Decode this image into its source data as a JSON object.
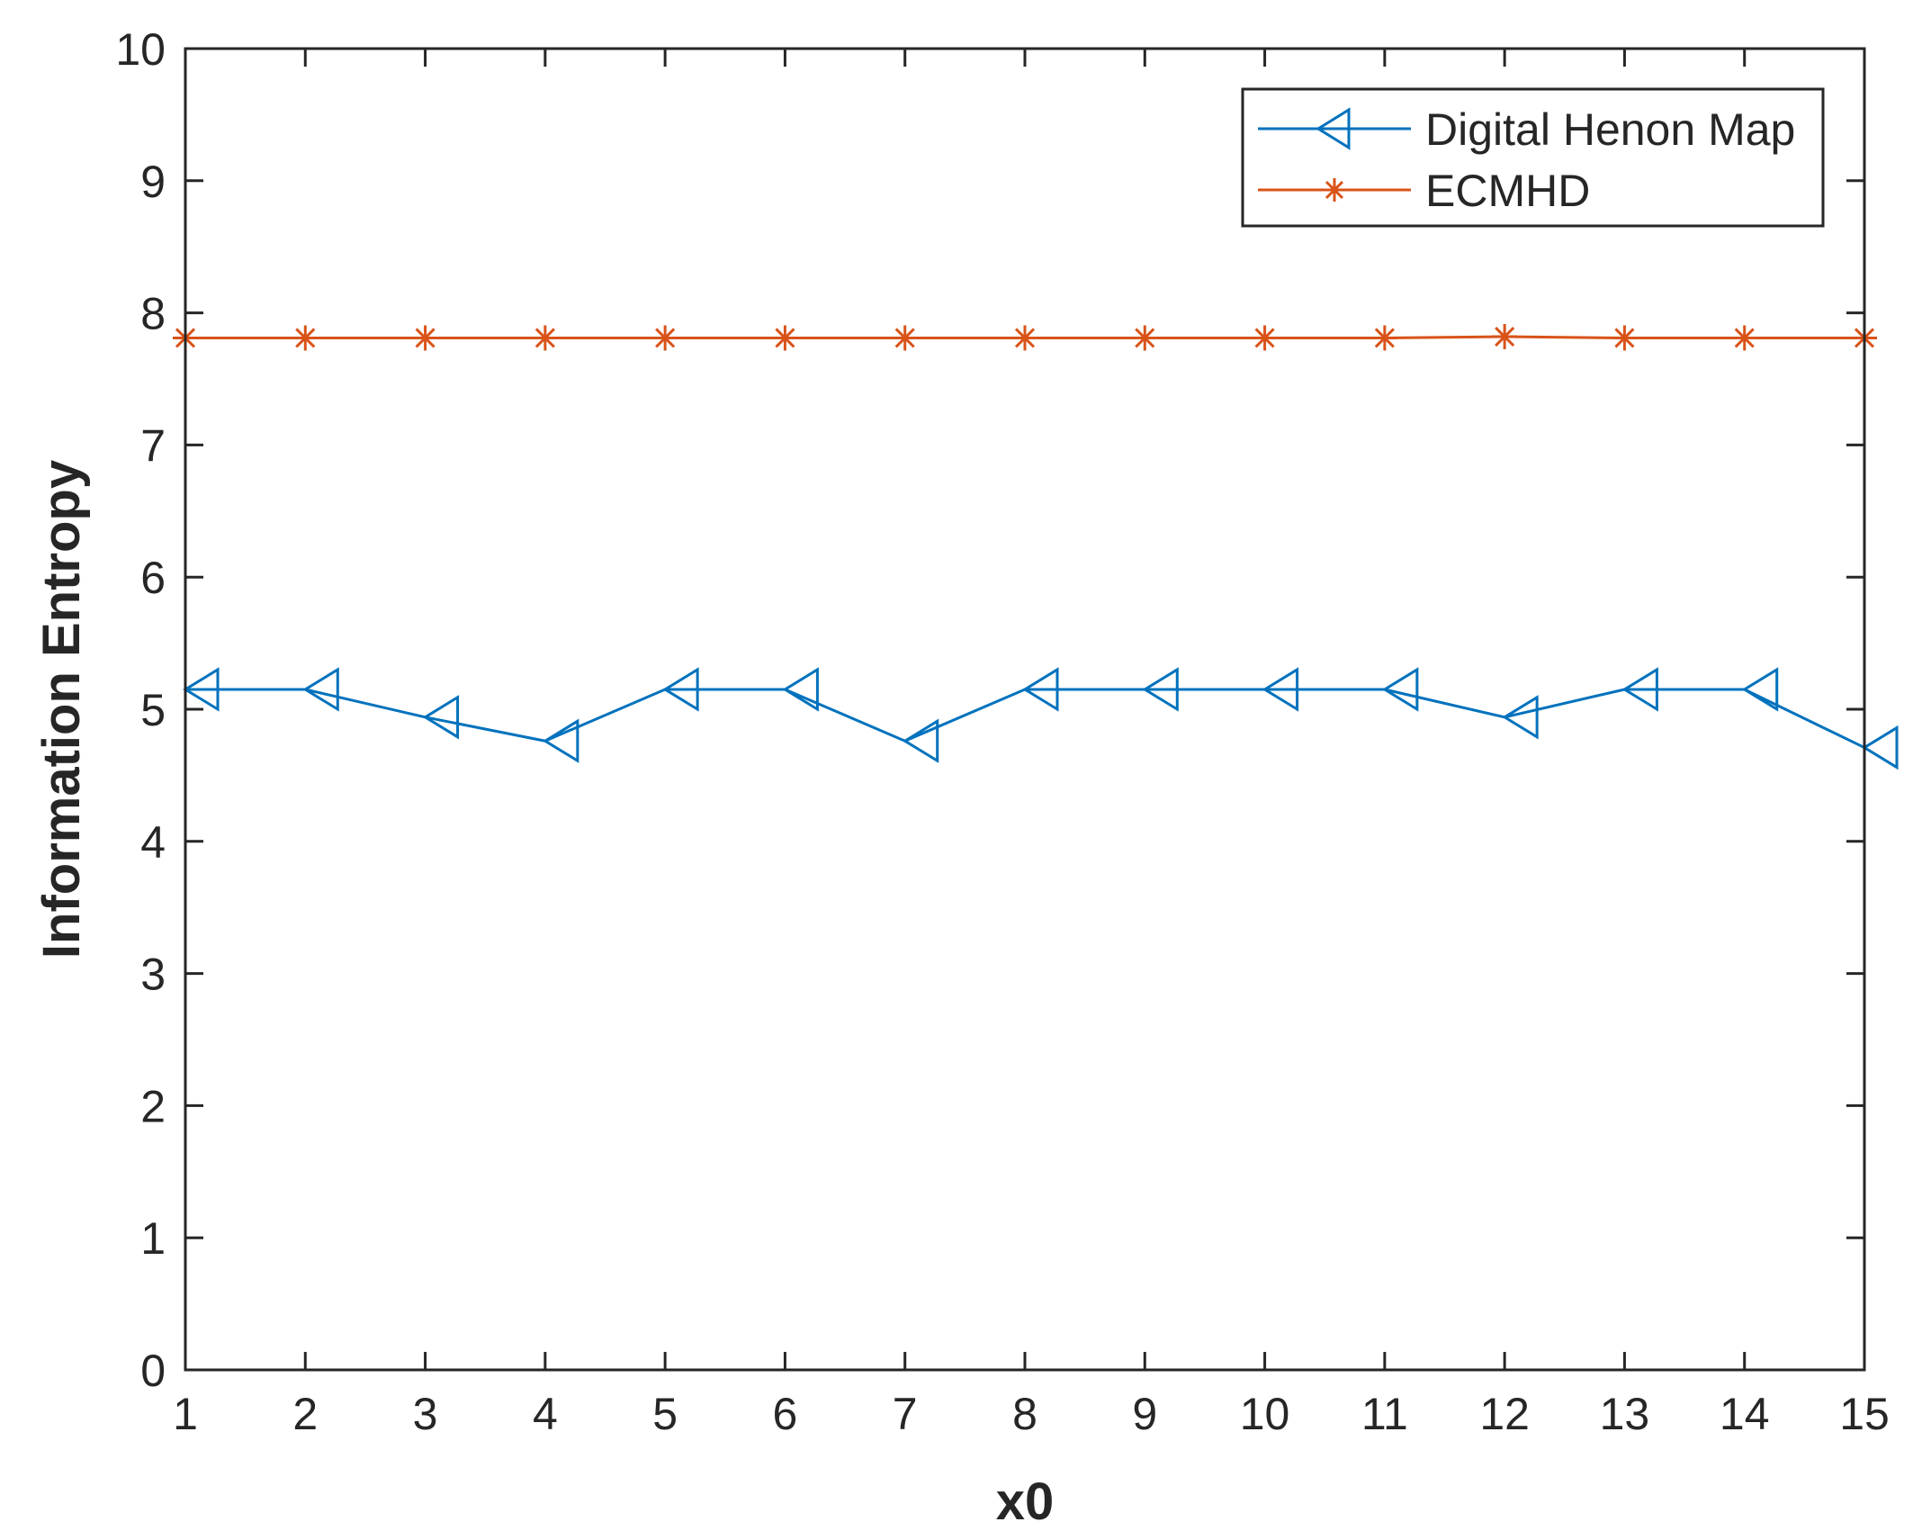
{
  "chart_data": {
    "type": "line",
    "title": "",
    "xlabel": "x0",
    "ylabel": "Information Entropy",
    "xlim": [
      1,
      15
    ],
    "ylim": [
      0,
      10
    ],
    "x_ticks": [
      1,
      2,
      3,
      4,
      5,
      6,
      7,
      8,
      9,
      10,
      11,
      12,
      13,
      14,
      15
    ],
    "y_ticks": [
      0,
      1,
      2,
      3,
      4,
      5,
      6,
      7,
      8,
      9,
      10
    ],
    "grid": false,
    "legend_position": "top-right",
    "x": [
      1,
      2,
      3,
      4,
      5,
      6,
      7,
      8,
      9,
      10,
      11,
      12,
      13,
      14,
      15
    ],
    "series": [
      {
        "name": "Digital Henon Map",
        "color": "#0072BD",
        "marker": "left-triangle",
        "values": [
          5.15,
          5.15,
          4.94,
          4.76,
          5.15,
          5.15,
          4.76,
          5.15,
          5.15,
          5.15,
          5.15,
          4.94,
          5.15,
          5.15,
          4.71
        ]
      },
      {
        "name": "ECMHD",
        "color": "#D95319",
        "marker": "asterisk",
        "values": [
          7.81,
          7.81,
          7.81,
          7.81,
          7.81,
          7.81,
          7.81,
          7.81,
          7.81,
          7.81,
          7.81,
          7.82,
          7.81,
          7.81,
          7.81
        ]
      }
    ]
  }
}
